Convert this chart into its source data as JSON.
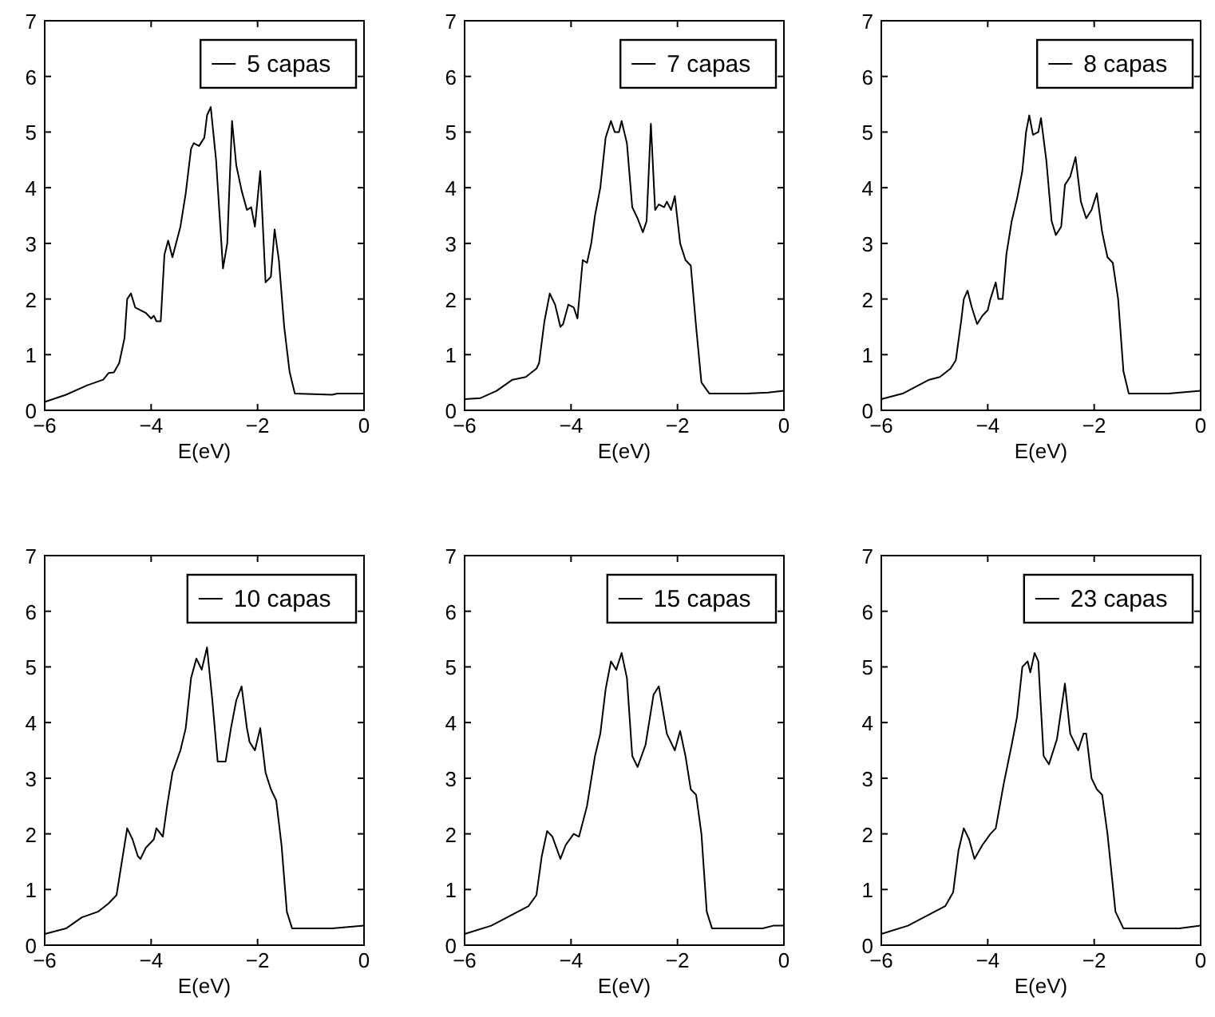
{
  "chart_data": [
    {
      "type": "line",
      "xlabel": "E(eV)",
      "xlim": [
        -6,
        0
      ],
      "xticks": [
        -6,
        -4,
        -2,
        0
      ],
      "ylim": [
        0,
        7
      ],
      "yticks": [
        0,
        1,
        2,
        3,
        4,
        5,
        6,
        7
      ],
      "grid": false,
      "legend": "top right",
      "marker": "none",
      "line_style": "solid",
      "x": [
        -6,
        -5.6,
        -5.2,
        -4.9,
        -4.8,
        -4.7,
        -4.6,
        -4.5,
        -4.45,
        -4.38,
        -4.3,
        -4.2,
        -4.1,
        -4.0,
        -3.95,
        -3.9,
        -3.82,
        -3.75,
        -3.68,
        -3.6,
        -3.45,
        -3.35,
        -3.25,
        -3.2,
        -3.1,
        -3.0,
        -2.95,
        -2.88,
        -2.78,
        -2.65,
        -2.57,
        -2.48,
        -2.4,
        -2.3,
        -2.2,
        -2.12,
        -2.05,
        -1.95,
        -1.85,
        -1.75,
        -1.68,
        -1.6,
        -1.5,
        -1.4,
        -1.3,
        -0.6,
        -0.5,
        0
      ],
      "series": [
        {
          "name": "5 capas",
          "color": "#000000",
          "values": [
            0.15,
            0.28,
            0.45,
            0.55,
            0.67,
            0.68,
            0.85,
            1.3,
            2.0,
            2.1,
            1.85,
            1.8,
            1.75,
            1.65,
            1.7,
            1.6,
            1.6,
            2.8,
            3.05,
            2.75,
            3.3,
            3.9,
            4.7,
            4.8,
            4.75,
            4.9,
            5.3,
            5.45,
            4.5,
            2.55,
            3.0,
            5.2,
            4.4,
            3.95,
            3.6,
            3.65,
            3.3,
            4.3,
            2.3,
            2.4,
            3.25,
            2.7,
            1.5,
            0.7,
            0.3,
            0.28,
            0.3,
            0.3
          ]
        }
      ]
    },
    {
      "type": "line",
      "xlabel": "E(eV)",
      "xlim": [
        -6,
        0
      ],
      "xticks": [
        -6,
        -4,
        -2,
        0
      ],
      "ylim": [
        0,
        7
      ],
      "yticks": [
        0,
        1,
        2,
        3,
        4,
        5,
        6,
        7
      ],
      "grid": false,
      "legend": "top right",
      "marker": "none",
      "line_style": "solid",
      "x": [
        -6,
        -5.7,
        -5.4,
        -5.1,
        -4.85,
        -4.65,
        -4.6,
        -4.5,
        -4.4,
        -4.3,
        -4.2,
        -4.15,
        -4.05,
        -3.95,
        -3.88,
        -3.78,
        -3.7,
        -3.62,
        -3.55,
        -3.45,
        -3.35,
        -3.25,
        -3.18,
        -3.1,
        -3.05,
        -2.95,
        -2.85,
        -2.75,
        -2.65,
        -2.58,
        -2.5,
        -2.42,
        -2.35,
        -2.25,
        -2.2,
        -2.12,
        -2.05,
        -1.95,
        -1.85,
        -1.75,
        -1.65,
        -1.55,
        -1.4,
        -0.7,
        -0.3,
        0
      ],
      "series": [
        {
          "name": "7 capas",
          "color": "#000000",
          "values": [
            0.2,
            0.22,
            0.35,
            0.55,
            0.6,
            0.75,
            0.85,
            1.6,
            2.1,
            1.9,
            1.5,
            1.55,
            1.9,
            1.85,
            1.65,
            2.7,
            2.65,
            3.0,
            3.5,
            4.0,
            4.9,
            5.2,
            5.0,
            5.0,
            5.2,
            4.8,
            3.65,
            3.45,
            3.2,
            3.4,
            5.15,
            3.6,
            3.7,
            3.65,
            3.75,
            3.6,
            3.85,
            3.0,
            2.7,
            2.6,
            1.5,
            0.5,
            0.3,
            0.3,
            0.32,
            0.35
          ]
        }
      ]
    },
    {
      "type": "line",
      "xlabel": "E(eV)",
      "xlim": [
        -6,
        0
      ],
      "xticks": [
        -6,
        -4,
        -2,
        0
      ],
      "ylim": [
        0,
        7
      ],
      "yticks": [
        0,
        1,
        2,
        3,
        4,
        5,
        6,
        7
      ],
      "grid": false,
      "legend": "top right",
      "marker": "none",
      "line_style": "solid",
      "x": [
        -6,
        -5.6,
        -5.3,
        -5.1,
        -4.9,
        -4.7,
        -4.6,
        -4.5,
        -4.45,
        -4.38,
        -4.3,
        -4.2,
        -4.1,
        -4.0,
        -3.95,
        -3.85,
        -3.8,
        -3.72,
        -3.65,
        -3.55,
        -3.45,
        -3.35,
        -3.28,
        -3.22,
        -3.15,
        -3.05,
        -3.0,
        -2.9,
        -2.8,
        -2.72,
        -2.62,
        -2.55,
        -2.45,
        -2.35,
        -2.25,
        -2.15,
        -2.05,
        -1.95,
        -1.85,
        -1.75,
        -1.65,
        -1.55,
        -1.45,
        -1.35,
        -0.6,
        0
      ],
      "series": [
        {
          "name": "8 capas",
          "color": "#000000",
          "values": [
            0.2,
            0.3,
            0.45,
            0.55,
            0.6,
            0.75,
            0.9,
            1.6,
            2.0,
            2.15,
            1.85,
            1.55,
            1.7,
            1.8,
            2.0,
            2.3,
            2.0,
            2.0,
            2.8,
            3.4,
            3.8,
            4.3,
            5.0,
            5.3,
            4.95,
            5.0,
            5.25,
            4.5,
            3.4,
            3.15,
            3.3,
            4.05,
            4.2,
            4.55,
            3.75,
            3.45,
            3.6,
            3.9,
            3.2,
            2.75,
            2.65,
            2.0,
            0.7,
            0.3,
            0.3,
            0.35
          ]
        }
      ]
    },
    {
      "type": "line",
      "xlabel": "E(eV)",
      "xlim": [
        -6,
        0
      ],
      "xticks": [
        -6,
        -4,
        -2,
        0
      ],
      "ylim": [
        0,
        7
      ],
      "yticks": [
        0,
        1,
        2,
        3,
        4,
        5,
        6,
        7
      ],
      "grid": false,
      "legend": "top right",
      "marker": "none",
      "line_style": "solid",
      "x": [
        -6,
        -5.6,
        -5.3,
        -5.0,
        -4.8,
        -4.65,
        -4.55,
        -4.45,
        -4.35,
        -4.25,
        -4.2,
        -4.1,
        -3.95,
        -3.9,
        -3.78,
        -3.7,
        -3.6,
        -3.45,
        -3.35,
        -3.25,
        -3.15,
        -3.05,
        -2.95,
        -2.85,
        -2.75,
        -2.6,
        -2.5,
        -2.4,
        -2.3,
        -2.2,
        -2.15,
        -2.05,
        -1.95,
        -1.85,
        -1.75,
        -1.65,
        -1.55,
        -1.45,
        -1.35,
        -0.6,
        0
      ],
      "series": [
        {
          "name": "10 capas",
          "color": "#000000",
          "values": [
            0.2,
            0.3,
            0.5,
            0.6,
            0.75,
            0.9,
            1.5,
            2.1,
            1.9,
            1.6,
            1.55,
            1.75,
            1.9,
            2.1,
            1.95,
            2.5,
            3.1,
            3.5,
            3.9,
            4.8,
            5.15,
            4.95,
            5.35,
            4.4,
            3.3,
            3.3,
            3.9,
            4.4,
            4.65,
            3.9,
            3.65,
            3.5,
            3.9,
            3.1,
            2.8,
            2.6,
            1.8,
            0.6,
            0.3,
            0.3,
            0.35
          ]
        }
      ]
    },
    {
      "type": "line",
      "xlabel": "E(eV)",
      "xlim": [
        -6,
        0
      ],
      "xticks": [
        -6,
        -4,
        -2,
        0
      ],
      "ylim": [
        0,
        7
      ],
      "yticks": [
        0,
        1,
        2,
        3,
        4,
        5,
        6,
        7
      ],
      "grid": false,
      "legend": "top right",
      "marker": "none",
      "line_style": "solid",
      "x": [
        -6,
        -5.5,
        -5.1,
        -4.8,
        -4.65,
        -4.55,
        -4.45,
        -4.35,
        -4.2,
        -4.1,
        -3.95,
        -3.85,
        -3.7,
        -3.55,
        -3.45,
        -3.35,
        -3.25,
        -3.15,
        -3.05,
        -2.95,
        -2.85,
        -2.75,
        -2.6,
        -2.45,
        -2.35,
        -2.2,
        -2.05,
        -1.95,
        -1.85,
        -1.75,
        -1.65,
        -1.55,
        -1.45,
        -1.35,
        -0.4,
        -0.2,
        0
      ],
      "series": [
        {
          "name": "15 capas",
          "color": "#000000",
          "values": [
            0.2,
            0.35,
            0.55,
            0.7,
            0.9,
            1.6,
            2.05,
            1.95,
            1.55,
            1.8,
            2.0,
            1.95,
            2.5,
            3.4,
            3.8,
            4.6,
            5.1,
            4.95,
            5.25,
            4.8,
            3.4,
            3.2,
            3.6,
            4.5,
            4.65,
            3.8,
            3.5,
            3.85,
            3.4,
            2.8,
            2.7,
            2.0,
            0.6,
            0.3,
            0.3,
            0.35,
            0.35
          ]
        }
      ]
    },
    {
      "type": "line",
      "xlabel": "E(eV)",
      "xlim": [
        -6,
        0
      ],
      "xticks": [
        -6,
        -4,
        -2,
        0
      ],
      "ylim": [
        0,
        7
      ],
      "yticks": [
        0,
        1,
        2,
        3,
        4,
        5,
        6,
        7
      ],
      "grid": false,
      "legend": "top right",
      "marker": "none",
      "line_style": "solid",
      "x": [
        -6,
        -5.5,
        -5.1,
        -4.8,
        -4.65,
        -4.55,
        -4.45,
        -4.35,
        -4.25,
        -4.1,
        -3.95,
        -3.85,
        -3.7,
        -3.55,
        -3.45,
        -3.35,
        -3.25,
        -3.2,
        -3.12,
        -3.05,
        -2.95,
        -2.85,
        -2.7,
        -2.55,
        -2.45,
        -2.3,
        -2.2,
        -2.15,
        -2.05,
        -1.95,
        -1.85,
        -1.75,
        -1.6,
        -1.45,
        -0.4,
        0
      ],
      "series": [
        {
          "name": "23 capas",
          "color": "#000000",
          "values": [
            0.2,
            0.35,
            0.55,
            0.7,
            0.95,
            1.7,
            2.1,
            1.9,
            1.55,
            1.8,
            2.0,
            2.1,
            2.9,
            3.6,
            4.1,
            5.0,
            5.1,
            4.9,
            5.25,
            5.1,
            3.4,
            3.25,
            3.7,
            4.7,
            3.8,
            3.5,
            3.8,
            3.8,
            3.0,
            2.8,
            2.7,
            2.0,
            0.6,
            0.3,
            0.3,
            0.35
          ]
        }
      ]
    }
  ]
}
